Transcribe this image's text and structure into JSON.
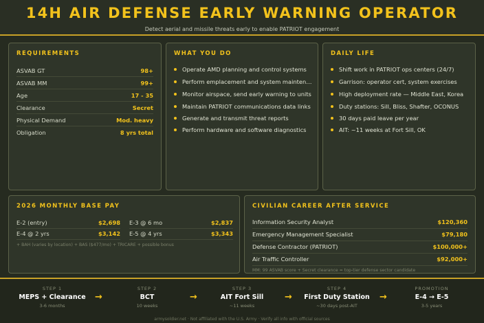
{
  "header": {
    "title": "14H AIR DEFENSE EARLY WARNING OPERATOR",
    "subtitle": "Detect aerial and missile threats early to enable PATRIOT engagement"
  },
  "requirements": {
    "title": "REQUIREMENTS",
    "rows": [
      {
        "label": "ASVAB GT",
        "value": "98+"
      },
      {
        "label": "ASVAB MM",
        "value": "99+"
      },
      {
        "label": "Age",
        "value": "17 - 35"
      },
      {
        "label": "Clearance",
        "value": "Secret"
      },
      {
        "label": "Physical Demand",
        "value": "Mod. heavy"
      },
      {
        "label": "Obligation",
        "value": "8 yrs total"
      }
    ]
  },
  "what_you_do": {
    "title": "WHAT YOU DO",
    "items": [
      "Operate AMD planning and control systems",
      "Perform emplacement and system maintenance",
      "Monitor airspace, send early warning to units",
      "Maintain PATRIOT communications data links",
      "Generate and transmit threat reports",
      "Perform hardware and software diagnostics"
    ]
  },
  "daily_life": {
    "title": "DAILY LIFE",
    "items": [
      "Shift work in PATRIOT ops centers (24/7)",
      "Garrison: operator cert, system exercises",
      "High deployment rate — Middle East, Korea",
      "Duty stations: Sill, Bliss, Shafter, OCONUS",
      "30 days paid leave per year",
      "AIT: ~11 weeks at Fort Sill, OK"
    ]
  },
  "pay": {
    "title": "2026 MONTHLY BASE PAY",
    "rows": [
      {
        "label": "E-2 (entry)",
        "value": "$2,698"
      },
      {
        "label": "E-3 @ 6 mo",
        "value": "$2,837"
      },
      {
        "label": "E-4 @ 2 yrs",
        "value": "$3,142"
      },
      {
        "label": "E-5 @ 4 yrs",
        "value": "$3,343"
      }
    ],
    "note": "+ BAH (varies by location) + BAS ($477/mo) + TRICARE + possible bonus"
  },
  "civilian": {
    "title": "CIVILIAN CAREER AFTER SERVICE",
    "rows": [
      {
        "label": "Information Security Analyst",
        "value": "$120,360"
      },
      {
        "label": "Emergency Management Specialist",
        "value": "$79,180"
      },
      {
        "label": "Defense Contractor (PATRIOT)",
        "value": "$100,000+"
      },
      {
        "label": "Air Traffic Controller",
        "value": "$92,000+"
      }
    ],
    "note": "MM: 99 ASVAB score + Secret clearance = top-tier defense sector candidate"
  },
  "path": {
    "steps": [
      {
        "label": "STEP 1",
        "name": "MEPS + Clearance",
        "sub": "3-6 months"
      },
      {
        "label": "STEP 2",
        "name": "BCT",
        "sub": "10 weeks"
      },
      {
        "label": "STEP 3",
        "name": "AIT Fort Sill",
        "sub": "~11 weeks"
      },
      {
        "label": "STEP 4",
        "name": "First Duty Station",
        "sub": "~30 days post-AIT"
      },
      {
        "label": "PROMOTION",
        "name": "E-4 → E-5",
        "sub": "3-5 years"
      }
    ],
    "arrow": "→"
  },
  "footer": "armysoldier.net · Not affiliated with the U.S. Army · Verify all info with official sources",
  "colors": {
    "accent": "#f2c21c",
    "background": "#262b20",
    "card": "#2f3529",
    "border": "#5c6248"
  }
}
